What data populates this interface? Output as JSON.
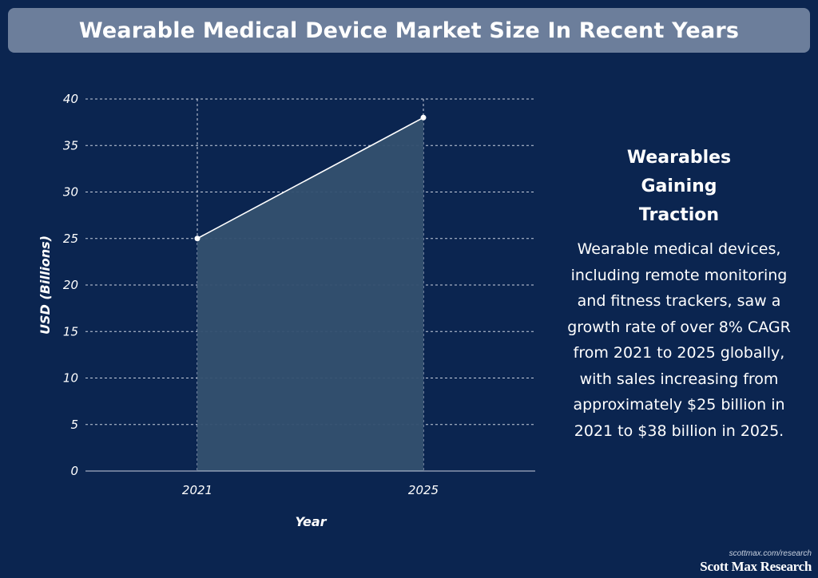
{
  "title": "Wearable Medical Device Market Size In Recent Years",
  "chart_data": {
    "type": "area",
    "x": [
      "2021",
      "2025"
    ],
    "series": [
      {
        "values": [
          25,
          38
        ]
      }
    ],
    "xlabel": "Year",
    "ylabel": "USD (Billions)",
    "ylim": [
      0,
      40
    ],
    "yticks": [
      0,
      5,
      10,
      15,
      20,
      25,
      30,
      35,
      40
    ],
    "grid": true,
    "colors": {
      "line": "#ffffff",
      "fill": "#34506f",
      "grid": "#c8d0de",
      "axis": "#c8d0de"
    }
  },
  "side_panel": {
    "heading": "Wearables Gaining Traction",
    "body": "Wearable medical devices, including remote monitoring and fitness trackers, saw a growth rate of over 8% CAGR from 2021 to 2025 globally, with sales increasing from approximately $25 billion in 2021 to $38 billion in 2025."
  },
  "footer": {
    "url": "scottmax.com/research",
    "brand": "Scott Max Research"
  }
}
